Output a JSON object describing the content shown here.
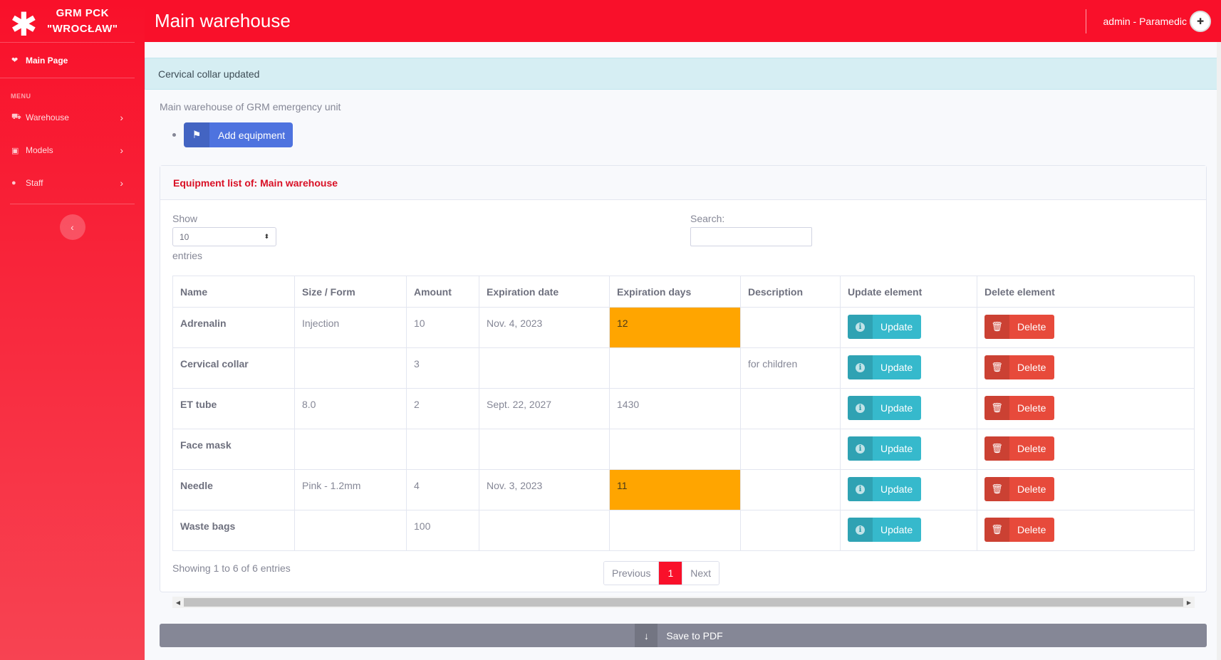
{
  "brand": {
    "line1": "GRM PCK",
    "line2": "\"WROCŁAW\"",
    "icon": "asterisk-icon"
  },
  "sidebar": {
    "main_page": "Main Page",
    "heading": "MENU",
    "items": [
      {
        "label": "Warehouse",
        "icon": "truck-icon"
      },
      {
        "label": "Models",
        "icon": "briefcase-icon"
      },
      {
        "label": "Staff",
        "icon": "user-icon"
      }
    ]
  },
  "topbar": {
    "title": "Main warehouse",
    "user": "admin - Paramedic"
  },
  "alert": "Cervical collar updated",
  "subtitle": "Main warehouse of GRM emergency unit",
  "add_button": "Add equipment",
  "card": {
    "title": "Equipment list of: Main warehouse",
    "show_label": "Show",
    "entries_label": "entries",
    "page_size": "10",
    "search_label": "Search:",
    "columns": [
      "Name",
      "Size / Form",
      "Amount",
      "Expiration date",
      "Expiration days",
      "Description",
      "Update element",
      "Delete element"
    ],
    "rows": [
      {
        "name": "Adrenalin",
        "size": "Injection",
        "amount": "10",
        "exp_date": "Nov. 4, 2023",
        "exp_days": "12",
        "desc": "",
        "warn": true
      },
      {
        "name": "Cervical collar",
        "size": "",
        "amount": "3",
        "exp_date": "",
        "exp_days": "",
        "desc": "for children",
        "warn": false
      },
      {
        "name": "ET tube",
        "size": "8.0",
        "amount": "2",
        "exp_date": "Sept. 22, 2027",
        "exp_days": "1430",
        "desc": "",
        "warn": false
      },
      {
        "name": "Face mask",
        "size": "",
        "amount": "",
        "exp_date": "",
        "exp_days": "",
        "desc": "",
        "warn": false
      },
      {
        "name": "Needle",
        "size": "Pink - 1.2mm",
        "amount": "4",
        "exp_date": "Nov. 3, 2023",
        "exp_days": "11",
        "desc": "",
        "warn": true
      },
      {
        "name": "Waste bags",
        "size": "",
        "amount": "100",
        "exp_date": "",
        "exp_days": "",
        "desc": "",
        "warn": false
      }
    ],
    "update_label": "Update",
    "delete_label": "Delete",
    "info": "Showing 1 to 6 of 6 entries",
    "pager": {
      "prev": "Previous",
      "current": "1",
      "next": "Next"
    }
  },
  "pdf_button": "Save to PDF",
  "colors": {
    "primary_red": "#f9102a",
    "warning": "#ffa500",
    "info": "#36b9cc",
    "danger": "#e74a3b"
  }
}
